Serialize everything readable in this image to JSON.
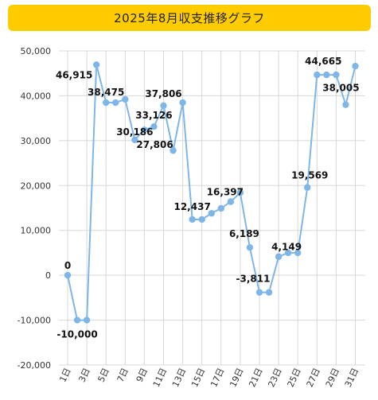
{
  "chart_data": {
    "type": "line",
    "title": "2025年8月収支推移グラフ",
    "xlabel": "",
    "ylabel": "",
    "ylim": [
      -20000,
      50000
    ],
    "yticks": [
      50000,
      40000,
      30000,
      20000,
      10000,
      0,
      -10000,
      -20000
    ],
    "ytick_labels": [
      "50,000",
      "40,000",
      "30,000",
      "20,000",
      "10,000",
      "0",
      "-10,000",
      "-20,000"
    ],
    "categories": [
      "1日",
      "2日",
      "3日",
      "4日",
      "5日",
      "6日",
      "7日",
      "8日",
      "9日",
      "10日",
      "11日",
      "12日",
      "13日",
      "14日",
      "15日",
      "16日",
      "17日",
      "18日",
      "19日",
      "20日",
      "21日",
      "22日",
      "23日",
      "24日",
      "25日",
      "26日",
      "27日",
      "28日",
      "29日",
      "30日",
      "31日"
    ],
    "xtick_labels": [
      "1日",
      "3日",
      "5日",
      "7日",
      "9日",
      "11日",
      "13日",
      "15日",
      "17日",
      "19日",
      "21日",
      "23日",
      "25日",
      "27日",
      "29日",
      "31日"
    ],
    "series": [
      {
        "values": [
          0,
          -10000,
          -10000,
          46915,
          38475,
          38475,
          39200,
          30186,
          32400,
          33126,
          37806,
          27806,
          38475,
          12437,
          12437,
          13800,
          14900,
          16397,
          18400,
          6189,
          -3811,
          -3811,
          4149,
          5000,
          5000,
          19569,
          44665,
          44665,
          44665,
          38005,
          46600
        ]
      }
    ],
    "data_labels": [
      {
        "index": 0,
        "text": "0"
      },
      {
        "index": 1,
        "text": "-10,000"
      },
      {
        "index": 3,
        "text": "46,915"
      },
      {
        "index": 4,
        "text": "38,475"
      },
      {
        "index": 7,
        "text": "30,186"
      },
      {
        "index": 9,
        "text": "33,126"
      },
      {
        "index": 10,
        "text": "37,806"
      },
      {
        "index": 11,
        "text": "27,806"
      },
      {
        "index": 13,
        "text": "12,437"
      },
      {
        "index": 17,
        "text": "16,397"
      },
      {
        "index": 19,
        "text": "6,189"
      },
      {
        "index": 20,
        "text": "-3,811"
      },
      {
        "index": 22,
        "text": "4,149"
      },
      {
        "index": 25,
        "text": "19,569"
      },
      {
        "index": 26,
        "text": "44,665"
      },
      {
        "index": 29,
        "text": "38,005"
      }
    ],
    "grid": true,
    "colors": {
      "line": "#7eb6e8",
      "title_bg": "#ffcc00"
    }
  }
}
